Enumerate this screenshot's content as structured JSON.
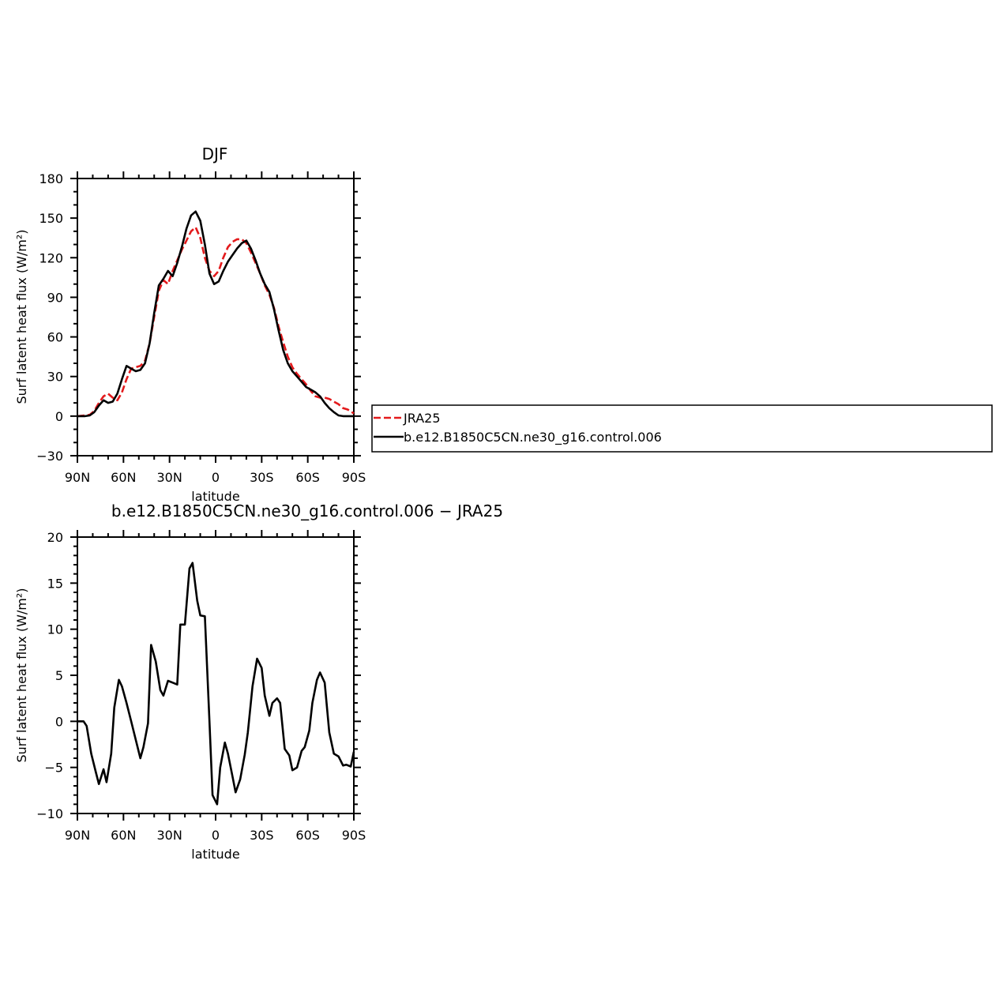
{
  "chart_data": [
    {
      "type": "line",
      "title": "DJF",
      "xlabel": "latitude",
      "ylabel": "Surf latent heat flux (W/m²)",
      "xlim": [
        -90,
        90
      ],
      "ylim": [
        -30,
        180
      ],
      "x_ticks": [
        -90,
        -60,
        -30,
        0,
        30,
        60,
        90
      ],
      "x_tick_labels": [
        "90N",
        "60N",
        "30N",
        "0",
        "30S",
        "60S",
        "90S"
      ],
      "y_ticks": [
        -30,
        0,
        30,
        60,
        90,
        120,
        150,
        180
      ],
      "y_tick_labels": [
        "−30",
        "0",
        "30",
        "60",
        "90",
        "120",
        "150",
        "180"
      ],
      "grid": false,
      "legend": "right",
      "series": [
        {
          "name": "JRA25",
          "color": "#e31a1c",
          "style": "dashed",
          "x": [
            -90,
            -85,
            -82,
            -79,
            -76,
            -73,
            -70,
            -67,
            -64,
            -61,
            -58,
            -55,
            -52,
            -49,
            -46,
            -43,
            -40,
            -37,
            -34,
            -31,
            -28,
            -25,
            -22,
            -19,
            -16,
            -13,
            -10,
            -7,
            -4,
            -1,
            2,
            5,
            8,
            11,
            14,
            17,
            20,
            23,
            26,
            29,
            32,
            35,
            38,
            41,
            44,
            47,
            50,
            53,
            56,
            59,
            62,
            65,
            68,
            71,
            74,
            77,
            80,
            83,
            86,
            90
          ],
          "y": [
            0,
            0.5,
            1,
            4,
            10,
            15,
            17,
            14,
            12,
            18,
            28,
            36,
            37,
            38,
            42,
            55,
            75,
            95,
            103,
            100,
            110,
            118,
            126,
            133,
            140,
            143,
            135,
            120,
            110,
            106,
            110,
            120,
            128,
            132,
            134,
            134,
            131,
            124,
            116,
            108,
            99,
            92,
            82,
            68,
            56,
            45,
            37,
            32,
            28,
            24,
            19,
            15,
            14,
            14,
            13,
            11,
            9,
            6,
            5,
            2
          ]
        },
        {
          "name": "b.e12.B1850C5CN.ne30_g16.control.006",
          "color": "#000000",
          "style": "solid",
          "x": [
            -90,
            -85,
            -82,
            -79,
            -76,
            -73,
            -70,
            -67,
            -64,
            -61,
            -58,
            -55,
            -52,
            -49,
            -46,
            -43,
            -40,
            -37,
            -34,
            -31,
            -28,
            -25,
            -22,
            -19,
            -16,
            -13,
            -10,
            -7,
            -4,
            -1,
            2,
            5,
            8,
            11,
            14,
            17,
            20,
            23,
            26,
            29,
            32,
            35,
            38,
            41,
            44,
            47,
            50,
            53,
            56,
            59,
            62,
            65,
            68,
            71,
            74,
            77,
            80,
            83,
            86,
            90
          ],
          "y": [
            0,
            0,
            0.5,
            3,
            8,
            12,
            10,
            11,
            17,
            28,
            38,
            36,
            34,
            35,
            40,
            55,
            78,
            99,
            104,
            110,
            106,
            116,
            128,
            142,
            152,
            155,
            148,
            130,
            108,
            100,
            102,
            110,
            117,
            122,
            127,
            131,
            133,
            127,
            118,
            108,
            100,
            94,
            81,
            65,
            50,
            40,
            34,
            30,
            26,
            22,
            20,
            18,
            15,
            10,
            6,
            3,
            0.5,
            0,
            0,
            0
          ]
        }
      ]
    },
    {
      "type": "line",
      "title": "b.e12.B1850C5CN.ne30_g16.control.006 − JRA25",
      "xlabel": "latitude",
      "ylabel": "Surf latent heat flux (W/m²)",
      "xlim": [
        -90,
        90
      ],
      "ylim": [
        -10,
        20
      ],
      "x_ticks": [
        -90,
        -60,
        -30,
        0,
        30,
        60,
        90
      ],
      "x_tick_labels": [
        "90N",
        "60N",
        "30N",
        "0",
        "30S",
        "60S",
        "90S"
      ],
      "y_ticks": [
        -10,
        -5,
        0,
        5,
        10,
        15,
        20
      ],
      "y_tick_labels": [
        "−10",
        "−5",
        "0",
        "5",
        "10",
        "15",
        "20"
      ],
      "grid": false,
      "series": [
        {
          "name": "",
          "color": "#000000",
          "style": "solid",
          "x": [
            -90,
            -86,
            -84,
            -81,
            -78,
            -76,
            -73,
            -71,
            -68,
            -66,
            -63,
            -61,
            -58,
            -55,
            -52,
            -49,
            -47,
            -44,
            -42,
            -39,
            -36,
            -34,
            -31,
            -28,
            -25,
            -23,
            -20,
            -17,
            -15,
            -12,
            -10,
            -7,
            -4,
            -2,
            1,
            3,
            6,
            8,
            11,
            13,
            16,
            19,
            21,
            24,
            27,
            30,
            32,
            35,
            37,
            40,
            42,
            45,
            48,
            50,
            53,
            56,
            58,
            61,
            63,
            66,
            68,
            71,
            74,
            77,
            80,
            83,
            85,
            88,
            90
          ],
          "y": [
            0,
            0,
            -0.5,
            -3.5,
            -5.5,
            -6.8,
            -5.2,
            -6.6,
            -3.5,
            1.5,
            4.5,
            3.8,
            2,
            0,
            -2,
            -4,
            -2.8,
            -0.2,
            8.3,
            6.5,
            3.4,
            2.8,
            4.4,
            4.2,
            4,
            10.5,
            10.5,
            16.6,
            17.2,
            13.1,
            11.5,
            11.4,
            0,
            -8,
            -9,
            -5,
            -2.3,
            -3.5,
            -6,
            -7.7,
            -6.3,
            -3.6,
            -1.2,
            3.8,
            6.8,
            5.8,
            2.8,
            0.6,
            2,
            2.5,
            2,
            -3,
            -3.7,
            -5.3,
            -5,
            -3.2,
            -2.8,
            -1,
            2,
            4.5,
            5.3,
            4.2,
            -1.2,
            -3.5,
            -3.8,
            -4.8,
            -4.7,
            -4.9,
            -3.3
          ]
        }
      ]
    }
  ]
}
